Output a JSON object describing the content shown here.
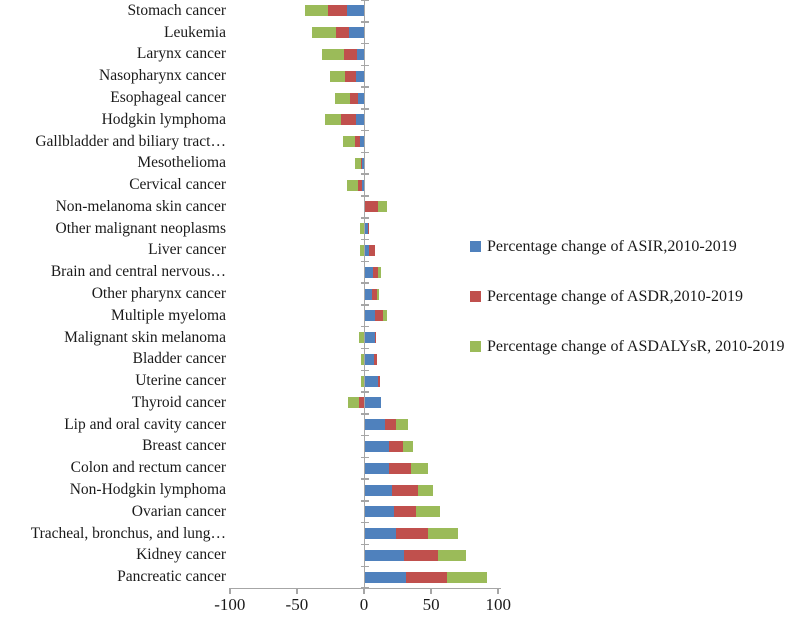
{
  "figure": {
    "background": "#ffffff",
    "axis_color": "#a6a6a6",
    "text_color": "#1a1a1a"
  },
  "chart_data": {
    "type": "bar",
    "orientation": "horizontal",
    "stacked": true,
    "title": "",
    "xlabel": "",
    "ylabel": "",
    "xlim": [
      -100,
      100
    ],
    "x_ticks": [
      -100,
      -50,
      0,
      50,
      100
    ],
    "x_tick_labels": [
      "-100",
      "-50",
      "0",
      "50",
      "100"
    ],
    "grid": false,
    "legend_position": "right",
    "categories": [
      "Stomach cancer",
      "Leukemia",
      "Larynx cancer",
      "Nasopharynx cancer",
      "Esophageal cancer",
      "Hodgkin lymphoma",
      "Gallbladder and biliary tract…",
      "Mesothelioma",
      "Cervical cancer",
      "Non-melanoma skin cancer",
      "Other malignant neoplasms",
      "Liver cancer",
      "Brain and central nervous…",
      "Other pharynx cancer",
      "Multiple myeloma",
      "Malignant skin melanoma",
      "Bladder cancer",
      "Uterine cancer",
      "Thyroid cancer",
      "Lip and oral cavity cancer",
      "Breast cancer",
      "Colon and rectum cancer",
      "Non-Hodgkin lymphoma",
      "Ovarian cancer",
      "Tracheal, bronchus, and lung…",
      "Kidney cancer",
      "Pancreatic cancer"
    ],
    "series": [
      {
        "name": "Percentage change of ASIR,2010-2019",
        "color": "#4F81BD",
        "values": [
          -13,
          -11,
          -5,
          -6,
          -4.5,
          -6,
          -3,
          -2,
          -1.5,
          0.3,
          3,
          4,
          7,
          6,
          8,
          8,
          7.5,
          10.5,
          13,
          16,
          19,
          19,
          21,
          22,
          24,
          30,
          31
        ]
      },
      {
        "name": "Percentage change of ASDR,2010-2019",
        "color": "#C0504D",
        "values": [
          -14,
          -10,
          -10,
          -8,
          -6,
          -11,
          -3.5,
          -0.4,
          -3,
          10.5,
          0.5,
          4,
          3.5,
          3.5,
          6,
          0.3,
          2.5,
          1.5,
          -4,
          8,
          10,
          16,
          19,
          17,
          24,
          25,
          31
        ]
      },
      {
        "name": "Percentage change of ASDALYsR, 2010-2019",
        "color": "#9BBB59",
        "values": [
          -17,
          -18,
          -16,
          -11,
          -11,
          -12,
          -9.5,
          -4.5,
          -8,
          6.5,
          -3,
          -3,
          2,
          1.5,
          3,
          -4,
          -2,
          -2,
          -8,
          9,
          7.5,
          13,
          11.5,
          18,
          22,
          21,
          30
        ]
      }
    ]
  }
}
